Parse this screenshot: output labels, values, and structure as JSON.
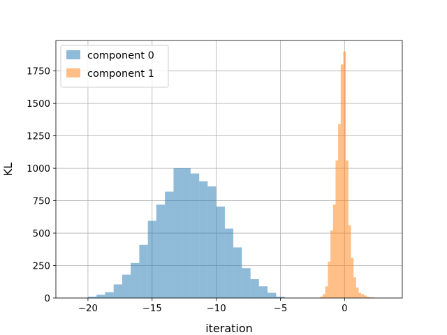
{
  "chart_data": {
    "type": "bar",
    "title": "",
    "xlabel": "iteration",
    "ylabel": "KL",
    "xlim": [
      -22.5,
      4.5
    ],
    "ylim": [
      0,
      1985
    ],
    "xticks": [
      -20,
      -15,
      -10,
      -5,
      0
    ],
    "yticks": [
      0,
      250,
      500,
      750,
      1000,
      1250,
      1500,
      1750
    ],
    "grid": true,
    "legend_position": "top-left",
    "series": [
      {
        "name": "component 0",
        "color": "#1f77b4",
        "alpha": 0.5,
        "bin_edges": [
          -20.0,
          -19.33,
          -18.67,
          -18.0,
          -17.33,
          -16.67,
          -16.0,
          -15.33,
          -14.67,
          -14.0,
          -13.33,
          -12.67,
          -12.0,
          -11.33,
          -10.67,
          -10.0,
          -9.33,
          -8.67,
          -8.0,
          -7.33,
          -6.67,
          -6.0,
          -5.33,
          -4.67
        ],
        "counts": [
          10,
          25,
          45,
          105,
          180,
          270,
          410,
          595,
          720,
          820,
          1000,
          1000,
          960,
          900,
          860,
          705,
          535,
          390,
          230,
          145,
          90,
          40,
          10
        ]
      },
      {
        "name": "component 1",
        "color": "#ff7f0e",
        "alpha": 0.5,
        "bin_edges": [
          -1.9,
          -1.7,
          -1.5,
          -1.3,
          -1.1,
          -0.9,
          -0.7,
          -0.5,
          -0.3,
          -0.1,
          0.1,
          0.3,
          0.5,
          0.7,
          0.9,
          1.1,
          1.3,
          1.5,
          1.7,
          1.9,
          2.1,
          2.3,
          2.5
        ],
        "counts": [
          10,
          30,
          90,
          280,
          520,
          720,
          1060,
          1340,
          1800,
          1900,
          1060,
          560,
          310,
          160,
          80,
          40,
          30,
          20,
          10,
          5,
          5,
          2
        ]
      }
    ]
  }
}
